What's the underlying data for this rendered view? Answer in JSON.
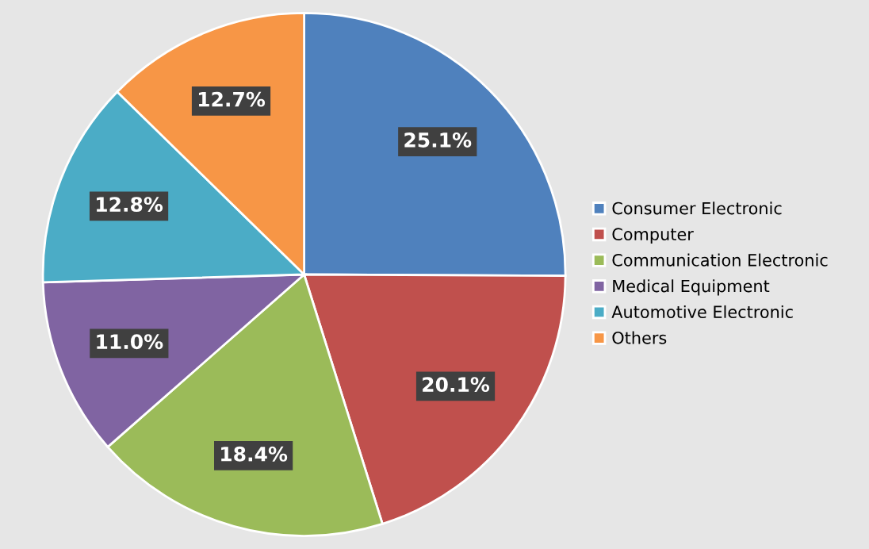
{
  "chart_data": {
    "type": "pie",
    "categories": [
      "Consumer Electronic",
      "Computer",
      "Communication Electronic",
      "Medical Equipment",
      "Automotive Electronic",
      "Others"
    ],
    "values": [
      25.1,
      20.1,
      18.4,
      11.0,
      12.8,
      12.7
    ],
    "value_labels": [
      "25.1%",
      "20.1%",
      "18.4%",
      "11.0%",
      "12.8%",
      "12.7%"
    ],
    "colors": [
      "#4f81bd",
      "#c0504d",
      "#9bbb59",
      "#8064a2",
      "#4bacc6",
      "#f79646"
    ],
    "legend": "right"
  }
}
